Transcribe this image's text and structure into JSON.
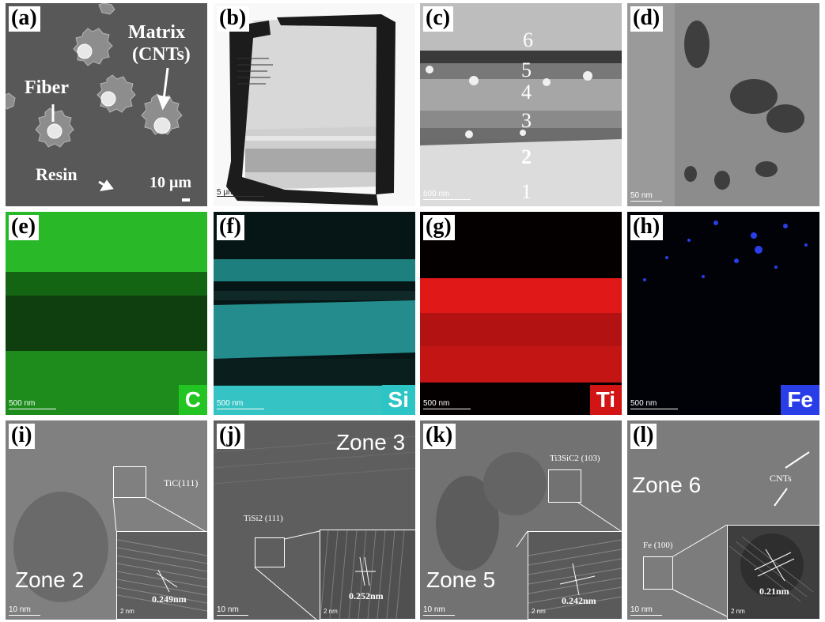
{
  "panels": {
    "a": {
      "label": "(a)",
      "matrix": "Matrix",
      "cnts": "(CNTs)",
      "fiber": "Fiber",
      "resin": "Resin",
      "scale": "10 μm"
    },
    "b": {
      "label": "(b)",
      "scale": "5 μm"
    },
    "c": {
      "label": "(c)",
      "scale": "500 nm",
      "zones": [
        "6",
        "5",
        "4",
        "3",
        "2",
        "1"
      ]
    },
    "d": {
      "label": "(d)",
      "scale": "50 nm"
    },
    "e": {
      "label": "(e)",
      "scale": "500 nm",
      "element": "C",
      "color": "#22c522"
    },
    "f": {
      "label": "(f)",
      "scale": "500 nm",
      "element": "Si",
      "color": "#2cc4c4"
    },
    "g": {
      "label": "(g)",
      "scale": "500 nm",
      "element": "Ti",
      "color": "#d21414"
    },
    "h": {
      "label": "(h)",
      "scale": "500 nm",
      "element": "Fe",
      "color": "#2a3ee8"
    },
    "i": {
      "label": "(i)",
      "scale": "10 nm",
      "inset_scale": "2 nm",
      "phase": "TiC(111)",
      "zone": "Zone 2",
      "spacing": "0.249nm"
    },
    "j": {
      "label": "(j)",
      "scale": "10 nm",
      "inset_scale": "2 nm",
      "phase": "TiSi2 (111)",
      "zone": "Zone 3",
      "spacing": "0.252nm"
    },
    "k": {
      "label": "(k)",
      "scale": "10 nm",
      "inset_scale": "2 nm",
      "phase": "Ti3SiC2 (103)",
      "zone": "Zone 5",
      "spacing": "0.242nm"
    },
    "l": {
      "label": "(l)",
      "scale": "10 nm",
      "inset_scale": "2 nm",
      "phase": "Fe (100)",
      "zone": "Zone 6",
      "spacing": "0.21nm",
      "cnts": "CNTs"
    }
  }
}
